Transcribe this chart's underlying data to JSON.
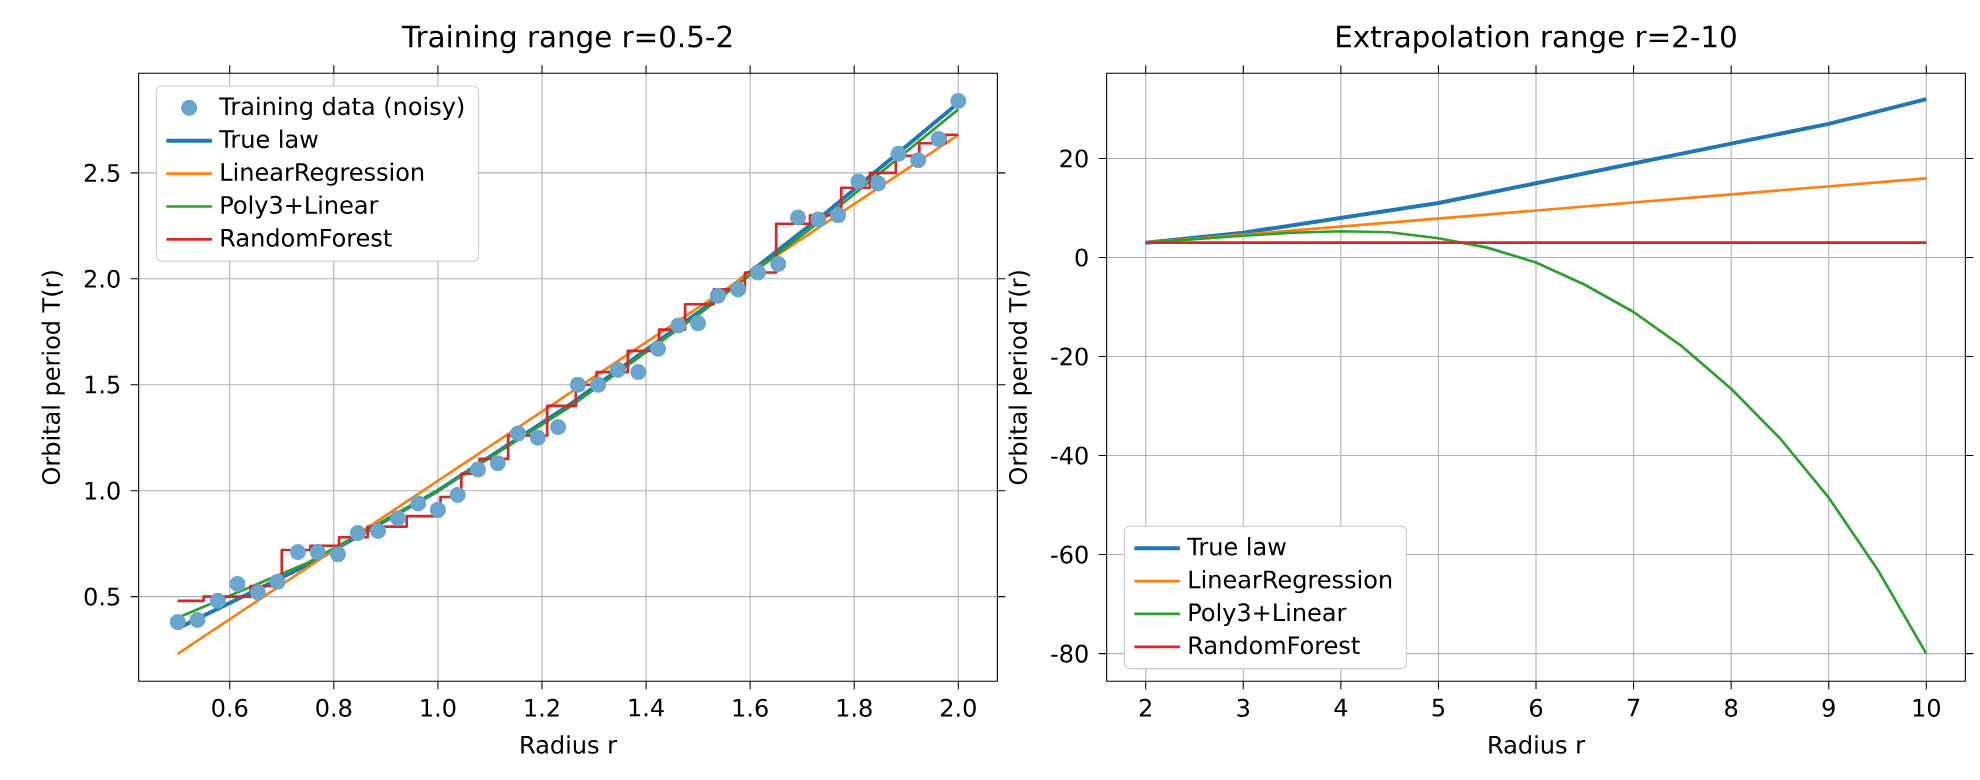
{
  "chart_data": [
    {
      "type": "line",
      "title": "Training range r=0.5-2",
      "xlabel": "Radius r",
      "ylabel": "Orbital period T(r)",
      "grid": true,
      "legend": "top left",
      "xlim": [
        0.425,
        2.075
      ],
      "ylim": [
        0.1,
        2.97
      ],
      "xticks": [
        0.6,
        0.8,
        {
          "value": 1,
          "label": "1.0"
        },
        1.2,
        1.4,
        1.6,
        1.8,
        {
          "value": 2,
          "label": "2.0"
        }
      ],
      "yticks": [
        0.5,
        {
          "value": 1,
          "label": "1.0"
        },
        1.5,
        {
          "value": 2,
          "label": "2.0"
        },
        2.5
      ],
      "series": [
        {
          "name": "Training data (noisy)",
          "type": "scatter",
          "marker": "circle",
          "color": "#6aa5cd",
          "x": [
            0.5,
            0.538,
            0.577,
            0.615,
            0.654,
            0.692,
            0.731,
            0.769,
            0.808,
            0.846,
            0.885,
            0.923,
            0.962,
            1.0,
            1.038,
            1.077,
            1.115,
            1.154,
            1.192,
            1.231,
            1.269,
            1.308,
            1.346,
            1.385,
            1.423,
            1.462,
            1.5,
            1.538,
            1.577,
            1.615,
            1.654,
            1.692,
            1.731,
            1.769,
            1.808,
            1.846,
            1.885,
            1.923,
            1.962,
            2.0
          ],
          "values": [
            0.38,
            0.39,
            0.48,
            0.56,
            0.52,
            0.57,
            0.71,
            0.71,
            0.7,
            0.8,
            0.81,
            0.87,
            0.94,
            0.91,
            0.98,
            1.1,
            1.13,
            1.27,
            1.25,
            1.3,
            1.5,
            1.5,
            1.57,
            1.56,
            1.67,
            1.78,
            1.79,
            1.92,
            1.95,
            2.03,
            2.07,
            2.29,
            2.28,
            2.3,
            2.46,
            2.45,
            2.59,
            2.56,
            2.66,
            2.84
          ]
        },
        {
          "name": "True law",
          "color": "#1f77b4",
          "x": [
            0.5,
            0.75,
            1.0,
            1.25,
            1.5,
            1.75,
            2.0
          ],
          "values": [
            0.35,
            0.65,
            1.0,
            1.4,
            1.84,
            2.32,
            2.83
          ]
        },
        {
          "name": "LinearRegression",
          "color": "#ff7f0e",
          "x": [
            0.5,
            2.0
          ],
          "values": [
            0.23,
            2.68
          ]
        },
        {
          "name": "Poly3+Linear",
          "color": "#2ca02c",
          "x": [
            0.5,
            0.75,
            1.0,
            1.25,
            1.5,
            1.75,
            2.0
          ],
          "values": [
            0.4,
            0.66,
            1.0,
            1.39,
            1.83,
            2.3,
            2.8
          ]
        },
        {
          "name": "RandomForest",
          "type": "step",
          "color": "#d62728",
          "x": [
            0.5,
            0.6,
            0.68,
            0.72,
            0.79,
            0.83,
            0.9,
            0.98,
            1.03,
            1.06,
            1.1,
            1.17,
            1.25,
            1.28,
            1.33,
            1.4,
            1.45,
            1.5,
            1.56,
            1.62,
            1.68,
            1.75,
            1.8,
            1.86,
            1.9,
            1.95,
            2.0
          ],
          "values": [
            0.48,
            0.5,
            0.55,
            0.72,
            0.74,
            0.78,
            0.83,
            0.88,
            0.97,
            1.08,
            1.15,
            1.26,
            1.4,
            1.5,
            1.56,
            1.66,
            1.76,
            1.88,
            1.95,
            2.03,
            2.26,
            2.3,
            2.43,
            2.5,
            2.58,
            2.64,
            2.68
          ]
        }
      ]
    },
    {
      "type": "line",
      "title": "Extrapolation range r=2-10",
      "xlabel": "Radius r",
      "ylabel": "Orbital period T(r)",
      "grid": true,
      "legend": "bottom left",
      "xlim": [
        1.6,
        10.4
      ],
      "ylim": [
        -85.6,
        37.2
      ],
      "xticks": [
        2,
        3,
        4,
        5,
        6,
        7,
        8,
        9,
        10
      ],
      "yticks": [
        -80,
        -60,
        -40,
        -20,
        0,
        20
      ],
      "series": [
        {
          "name": "True law",
          "color": "#1f77b4",
          "x": [
            2,
            3,
            4,
            5,
            6,
            7,
            8,
            9,
            10
          ],
          "values": [
            3,
            5,
            8,
            11,
            15,
            19,
            23,
            27,
            32
          ]
        },
        {
          "name": "LinearRegression",
          "color": "#ff7f0e",
          "x": [
            2,
            10
          ],
          "values": [
            3,
            16
          ]
        },
        {
          "name": "Poly3+Linear",
          "color": "#2ca02c",
          "x": [
            2,
            2.5,
            3,
            3.5,
            4,
            4.5,
            5,
            5.5,
            6,
            6.5,
            7,
            7.5,
            8,
            8.5,
            9,
            9.5,
            10
          ],
          "values": [
            3,
            3.7,
            4.4,
            5.0,
            5.3,
            5.1,
            3.9,
            2.0,
            -1.0,
            -5.5,
            -11,
            -18,
            -26.5,
            -36.5,
            -48.5,
            -63,
            -80
          ]
        },
        {
          "name": "RandomForest",
          "color": "#d62728",
          "x": [
            2,
            10
          ],
          "values": [
            3,
            3
          ]
        }
      ]
    }
  ]
}
